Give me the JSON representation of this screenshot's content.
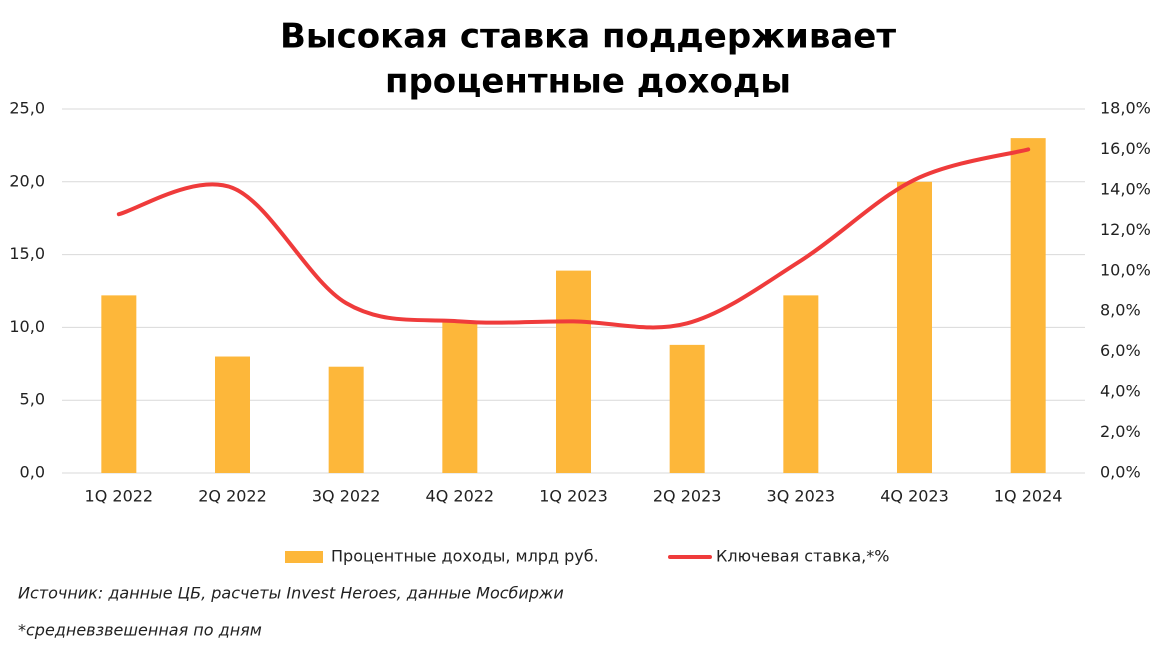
{
  "chart_data": {
    "type": "bar-line",
    "title": [
      "Высокая ставка поддерживает",
      "процентные доходы"
    ],
    "categories": [
      "1Q 2022",
      "2Q 2022",
      "3Q 2022",
      "4Q 2022",
      "1Q 2023",
      "2Q 2023",
      "3Q 2023",
      "4Q 2023",
      "1Q 2024"
    ],
    "series": [
      {
        "name": "Процентные доходы, млрд руб.",
        "color": "#FDB73A",
        "type": "bar",
        "values": [
          12.2,
          8.0,
          7.3,
          10.4,
          13.9,
          8.8,
          12.2,
          20.0,
          23.0
        ]
      },
      {
        "name": "Ключевая ставка,*%",
        "color": "#EF3B3B",
        "type": "line",
        "axis": "y2",
        "values": [
          12.8,
          14.1,
          8.4,
          7.5,
          7.5,
          7.4,
          10.5,
          14.5,
          16.0
        ]
      }
    ],
    "ylim": [
      0,
      25
    ],
    "yticks": [
      {
        "value": 0,
        "label": "0,0"
      },
      {
        "value": 5,
        "label": "5,0"
      },
      {
        "value": 10,
        "label": "10,0"
      },
      {
        "value": 15,
        "label": "15,0"
      },
      {
        "value": 20,
        "label": "20,0"
      },
      {
        "value": 25,
        "label": "25,0"
      }
    ],
    "y2lim": [
      0,
      18
    ],
    "y2ticks": [
      {
        "value": 0,
        "label": "0,0%"
      },
      {
        "value": 2,
        "label": "2,0%"
      },
      {
        "value": 4,
        "label": "4,0%"
      },
      {
        "value": 6,
        "label": "6,0%"
      },
      {
        "value": 8,
        "label": "8,0%"
      },
      {
        "value": 10,
        "label": "10,0%"
      },
      {
        "value": 12,
        "label": "12,0%"
      },
      {
        "value": 14,
        "label": "14,0%"
      },
      {
        "value": 16,
        "label": "16,0%"
      },
      {
        "value": 18,
        "label": "18,0%"
      }
    ],
    "grid": true,
    "source": "Источник: данные ЦБ, расчеты Invest Heroes, данные Мосбиржи",
    "note": "*средневзвешенная по дням"
  }
}
